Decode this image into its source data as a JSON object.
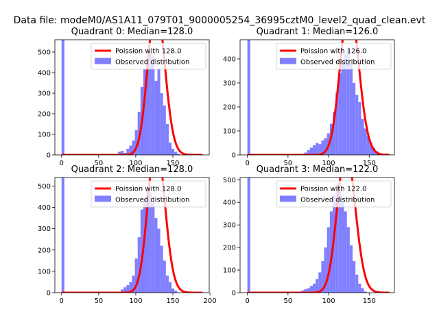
{
  "figure_title": "Data file: modeM0/AS1A11_079T01_9000005254_36995cztM0_level2_quad_clean.evt",
  "colors": {
    "observed": "#7f7fff",
    "poisson": "#ff0000"
  },
  "chart_data": [
    {
      "type": "bar",
      "title": "Quadrant 0: Median=128.0",
      "xlim": [
        -9,
        199
      ],
      "ylim": [
        0,
        560
      ],
      "xticks": [
        "0",
        "50",
        "100",
        "150"
      ],
      "xtick_values": [
        0,
        50,
        100,
        150
      ],
      "yticks": [
        "0",
        "100",
        "200",
        "300",
        "400",
        "500"
      ],
      "ytick_values": [
        0,
        100,
        200,
        300,
        400,
        500
      ],
      "legend": {
        "placement": "upper-right",
        "poisson_label": "Poission with 128.0",
        "observed_label": "Observed distribution"
      },
      "observed": {
        "bin_edges": [
          0,
          3.8,
          7.6,
          11.4,
          15.2,
          19,
          22.8,
          26.6,
          30.4,
          34.2,
          38,
          41.8,
          45.6,
          49.4,
          53.2,
          57,
          60.8,
          64.6,
          68.4,
          72.2,
          76,
          79.8,
          83.6,
          87.4,
          91.2,
          95,
          98.8,
          102.6,
          106.4,
          110.2,
          114,
          117.8,
          121.6,
          125.4,
          129.2,
          133,
          136.8,
          140.6,
          144.4,
          148.2,
          152,
          155.8,
          159.6,
          163.4,
          167.2,
          171,
          174.8,
          178.6,
          182.4,
          186.2,
          190
        ],
        "counts": [
          560,
          0,
          0,
          0,
          0,
          0,
          0,
          0,
          0,
          0,
          0,
          0,
          0,
          0,
          0,
          0,
          0,
          0,
          0,
          0,
          15,
          20,
          10,
          30,
          45,
          70,
          120,
          210,
          330,
          420,
          470,
          500,
          480,
          360,
          420,
          300,
          240,
          150,
          60,
          30,
          15,
          5,
          0,
          0,
          0,
          0,
          0,
          0,
          0,
          0
        ]
      },
      "poisson": {
        "mean": 128.0,
        "total": 5500,
        "bin_width": 3.8,
        "x_range": [
          0,
          190
        ]
      }
    },
    {
      "type": "bar",
      "title": "Quadrant 1: Median=126.0",
      "xlim": [
        -9,
        181
      ],
      "ylim": [
        0,
        480
      ],
      "xticks": [
        "0",
        "50",
        "100",
        "150"
      ],
      "xtick_values": [
        0,
        50,
        100,
        150
      ],
      "yticks": [
        "0",
        "100",
        "200",
        "300",
        "400"
      ],
      "ytick_values": [
        0,
        100,
        200,
        300,
        400
      ],
      "legend": {
        "placement": "upper-right",
        "poisson_label": "Poission with 126.0",
        "observed_label": "Observed distribution"
      },
      "observed": {
        "bin_edges": [
          0,
          3.5,
          7,
          10.5,
          14,
          17.5,
          21,
          24.5,
          28,
          31.5,
          35,
          38.5,
          42,
          45.5,
          49,
          52.5,
          56,
          59.5,
          63,
          66.5,
          70,
          73.5,
          77,
          80.5,
          84,
          87.5,
          91,
          94.5,
          98,
          101.5,
          105,
          108.5,
          112,
          115.5,
          119,
          122.5,
          126,
          129.5,
          133,
          136.5,
          140,
          143.5,
          147,
          150.5,
          154,
          157.5,
          161,
          164.5,
          168,
          171.5,
          175
        ],
        "counts": [
          480,
          0,
          0,
          0,
          0,
          0,
          0,
          0,
          0,
          0,
          0,
          0,
          0,
          0,
          0,
          0,
          0,
          0,
          0,
          5,
          10,
          20,
          30,
          40,
          50,
          45,
          60,
          70,
          90,
          130,
          180,
          260,
          340,
          390,
          420,
          440,
          380,
          300,
          250,
          220,
          150,
          110,
          80,
          50,
          30,
          15,
          5,
          0,
          0,
          0
        ]
      },
      "poisson": {
        "mean": 126.0,
        "total": 5100,
        "bin_width": 3.5,
        "x_range": [
          0,
          175
        ]
      }
    },
    {
      "type": "bar",
      "title": "Quadrant 2: Median=128.0",
      "xlim": [
        -9,
        199
      ],
      "ylim": [
        0,
        540
      ],
      "xticks": [
        "0",
        "50",
        "100",
        "150",
        "200"
      ],
      "xtick_values": [
        0,
        50,
        100,
        150,
        200
      ],
      "yticks": [
        "0",
        "100",
        "200",
        "300",
        "400",
        "500"
      ],
      "ytick_values": [
        0,
        100,
        200,
        300,
        400,
        500
      ],
      "legend": {
        "placement": "upper-right",
        "poisson_label": "Poission with 128.0",
        "observed_label": "Observed distribution"
      },
      "observed": {
        "bin_edges": [
          0,
          3.8,
          7.6,
          11.4,
          15.2,
          19,
          22.8,
          26.6,
          30.4,
          34.2,
          38,
          41.8,
          45.6,
          49.4,
          53.2,
          57,
          60.8,
          64.6,
          68.4,
          72.2,
          76,
          79.8,
          83.6,
          87.4,
          91.2,
          95,
          98.8,
          102.6,
          106.4,
          110.2,
          114,
          117.8,
          121.6,
          125.4,
          129.2,
          133,
          136.8,
          140.6,
          144.4,
          148.2,
          152,
          155.8,
          159.6,
          163.4,
          167.2,
          171,
          174.8,
          178.6,
          182.4,
          186.2,
          190
        ],
        "counts": [
          540,
          0,
          0,
          0,
          0,
          0,
          0,
          0,
          0,
          0,
          0,
          0,
          0,
          0,
          0,
          0,
          0,
          0,
          0,
          0,
          5,
          15,
          25,
          35,
          50,
          80,
          160,
          260,
          390,
          440,
          480,
          470,
          420,
          350,
          300,
          220,
          150,
          80,
          50,
          20,
          10,
          0,
          0,
          0,
          0,
          0,
          0,
          0,
          0,
          0
        ]
      },
      "poisson": {
        "mean": 128.0,
        "total": 5300,
        "bin_width": 3.8,
        "x_range": [
          0,
          190
        ]
      }
    },
    {
      "type": "bar",
      "title": "Quadrant 3: Median=122.0",
      "xlim": [
        -9,
        181
      ],
      "ylim": [
        0,
        510
      ],
      "xticks": [
        "0",
        "50",
        "100",
        "150"
      ],
      "xtick_values": [
        0,
        50,
        100,
        150
      ],
      "yticks": [
        "0",
        "100",
        "200",
        "300",
        "400",
        "500"
      ],
      "ytick_values": [
        0,
        100,
        200,
        300,
        400,
        500
      ],
      "legend": {
        "placement": "upper-right",
        "poisson_label": "Poission with 122.0",
        "observed_label": "Observed distribution"
      },
      "observed": {
        "bin_edges": [
          0,
          3.5,
          7,
          10.5,
          14,
          17.5,
          21,
          24.5,
          28,
          31.5,
          35,
          38.5,
          42,
          45.5,
          49,
          52.5,
          56,
          59.5,
          63,
          66.5,
          70,
          73.5,
          77,
          80.5,
          84,
          87.5,
          91,
          94.5,
          98,
          101.5,
          105,
          108.5,
          112,
          115.5,
          119,
          122.5,
          126,
          129.5,
          133,
          136.5,
          140,
          143.5,
          147,
          150.5,
          154,
          157.5,
          161,
          164.5,
          168,
          171.5,
          175
        ],
        "counts": [
          510,
          0,
          0,
          0,
          0,
          0,
          0,
          0,
          0,
          0,
          0,
          0,
          0,
          0,
          0,
          0,
          0,
          0,
          5,
          10,
          15,
          20,
          30,
          40,
          60,
          90,
          140,
          200,
          290,
          360,
          430,
          480,
          450,
          400,
          360,
          290,
          210,
          140,
          80,
          40,
          20,
          5,
          0,
          0,
          0,
          0,
          0,
          0,
          0,
          0
        ]
      },
      "poisson": {
        "mean": 122.0,
        "total": 5000,
        "bin_width": 3.5,
        "x_range": [
          0,
          175
        ]
      }
    }
  ]
}
